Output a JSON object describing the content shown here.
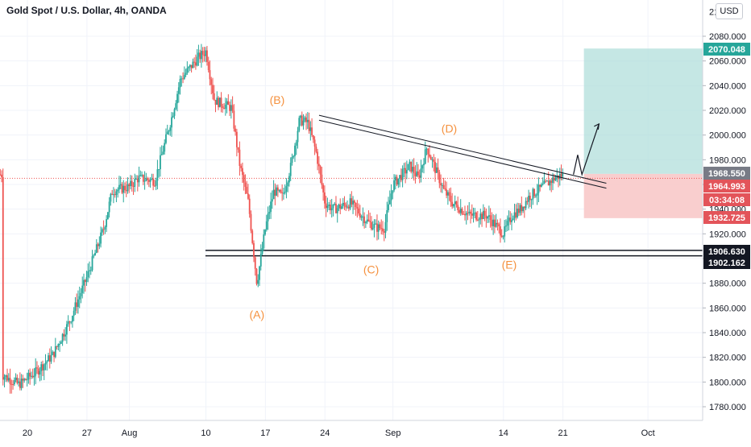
{
  "header": {
    "title": "Gold Spot / U.S. Dollar, 4h, OANDA",
    "currency_button": "USD"
  },
  "colors": {
    "up": "#26a69a",
    "down": "#ef5350",
    "target_zone": "#b2dfdb",
    "stop_zone": "#f8c6c6",
    "label_orange": "#f5913e",
    "last_price_tag": "#e3545a",
    "current_tag": "#787b86",
    "dark_tag": "#131722",
    "teal_tag": "#26a69a"
  },
  "chart_data": {
    "type": "candlestick",
    "title": "Gold Spot / U.S. Dollar, 4h, OANDA",
    "ylim": [
      1770,
      2100
    ],
    "y_ticks": [
      1780,
      1800,
      1820,
      1840,
      1860,
      1880,
      1900,
      1920,
      1940,
      1960,
      1980,
      2000,
      2020,
      2040,
      2060,
      2080
    ],
    "y_top_partial_label": "2100.0",
    "x_range_days": [
      0,
      44
    ],
    "x_ticks": [
      {
        "day": 0,
        "label": "20"
      },
      {
        "day": 7,
        "label": "27"
      },
      {
        "day": 12,
        "label": "Aug"
      },
      {
        "day": 21,
        "label": "10"
      },
      {
        "day": 28,
        "label": "17"
      },
      {
        "day": 35,
        "label": "24"
      },
      {
        "day": 43,
        "label": "Sep"
      },
      {
        "day": 56,
        "label": "14"
      },
      {
        "day": 63,
        "label": "21"
      },
      {
        "day": 73,
        "label": "Oct"
      }
    ],
    "price_path": [
      [
        -3,
        1806
      ],
      [
        -1,
        1798
      ],
      [
        1,
        1808
      ],
      [
        3,
        1822
      ],
      [
        5,
        1850
      ],
      [
        7,
        1885
      ],
      [
        9,
        1925
      ],
      [
        10,
        1955
      ],
      [
        12,
        1958
      ],
      [
        13,
        1965
      ],
      [
        15,
        1963
      ],
      [
        17,
        2015
      ],
      [
        18,
        2045
      ],
      [
        20,
        2062
      ],
      [
        21,
        2068
      ],
      [
        22,
        2028
      ],
      [
        24,
        2022
      ],
      [
        25,
        1975
      ],
      [
        26,
        1945
      ],
      [
        27,
        1880
      ],
      [
        28,
        1925
      ],
      [
        29,
        1955
      ],
      [
        30,
        1950
      ],
      [
        31,
        1975
      ],
      [
        32,
        2012
      ],
      [
        33,
        2010
      ],
      [
        34,
        1985
      ],
      [
        35,
        1945
      ],
      [
        36,
        1940
      ],
      [
        38,
        1945
      ],
      [
        40,
        1930
      ],
      [
        41,
        1925
      ],
      [
        42,
        1925
      ],
      [
        43,
        1960
      ],
      [
        45,
        1975
      ],
      [
        46,
        1965
      ],
      [
        47,
        1990
      ],
      [
        48,
        1972
      ],
      [
        49,
        1955
      ],
      [
        50,
        1945
      ],
      [
        52,
        1935
      ],
      [
        54,
        1935
      ],
      [
        56,
        1920
      ],
      [
        57,
        1935
      ],
      [
        58,
        1940
      ],
      [
        59,
        1950
      ],
      [
        60,
        1955
      ],
      [
        61,
        1960
      ],
      [
        62,
        1965
      ],
      [
        63,
        1968
      ]
    ],
    "wave_labels": [
      {
        "label": "(A)",
        "day": 27,
        "price": 1863
      },
      {
        "label": "(B)",
        "day": 29,
        "price": 2016
      },
      {
        "label": "(C)",
        "day": 41,
        "price": 1901
      },
      {
        "label": "(D)",
        "day": 50,
        "price": 1993
      },
      {
        "label": "(E)",
        "day": 58,
        "price": 1905
      }
    ],
    "trendlines": [
      {
        "from": [
          29,
          2016
        ],
        "to": [
          59,
          1961
        ]
      },
      {
        "from": [
          29,
          2012
        ],
        "to": [
          59,
          1957
        ]
      }
    ],
    "support_lines": [
      1906.63,
      1902.162
    ],
    "projection_path": [
      [
        63,
        1968
      ],
      [
        63.5,
        1984
      ],
      [
        64,
        1968
      ],
      [
        66,
        2009
      ]
    ],
    "target_zone": {
      "from_day": 63,
      "to_day": 67,
      "top": 2070.048,
      "bottom": 1968.55
    },
    "stop_zone": {
      "from_day": 63,
      "to_day": 67,
      "top": 1968.55,
      "bottom": 1932.725
    },
    "current_price": 1964.993,
    "price_tags": [
      {
        "value": "2070.048",
        "price": 2070.048,
        "style": "teal"
      },
      {
        "value": "1968.550",
        "price": 1968.55,
        "style": "gray"
      },
      {
        "value": "1964.993",
        "price": 1964.993,
        "style": "red"
      },
      {
        "value": "03:34:08",
        "price": 1952,
        "style": "red"
      },
      {
        "value": "1932.725",
        "price": 1932.725,
        "style": "red"
      },
      {
        "value": "1906.630",
        "price": 1906.63,
        "style": "dark"
      },
      {
        "value": "1902.162",
        "price": 1902.162,
        "style": "dark"
      }
    ]
  }
}
